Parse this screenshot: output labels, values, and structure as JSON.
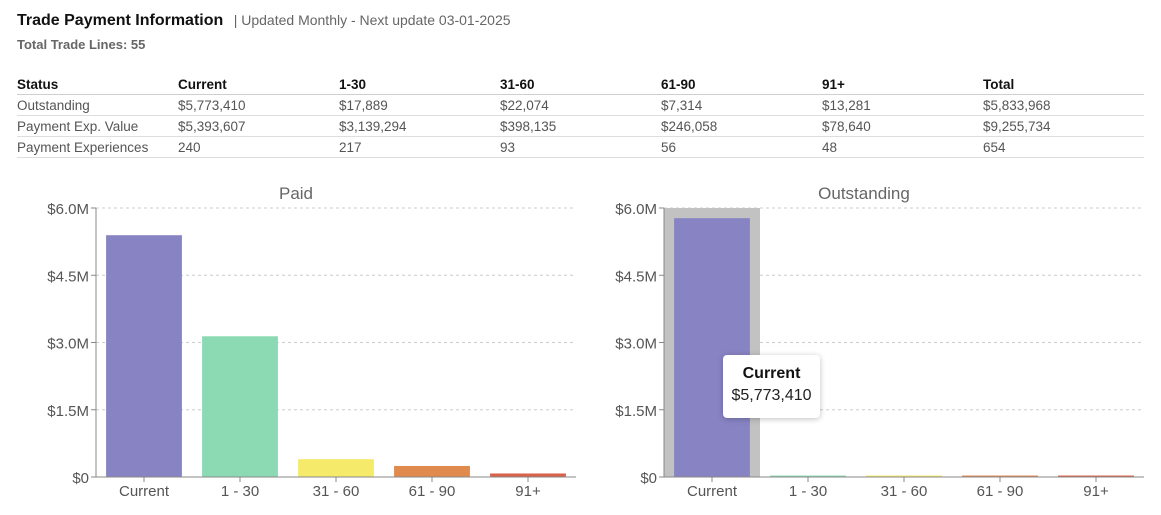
{
  "header": {
    "title": "Trade Payment Information",
    "updated": "| Updated Monthly - Next update 03-01-2025",
    "total_lines": "Total Trade Lines: 55"
  },
  "table": {
    "columns": [
      "Status",
      "Current",
      "1-30",
      "31-60",
      "61-90",
      "91+",
      "Total"
    ],
    "rows": [
      [
        "Outstanding",
        "$5,773,410",
        "$17,889",
        "$22,074",
        "$7,314",
        "$13,281",
        "$5,833,968"
      ],
      [
        "Payment Exp. Value",
        "$5,393,607",
        "$3,139,294",
        "$398,135",
        "$246,058",
        "$78,640",
        "$9,255,734"
      ],
      [
        "Payment Experiences",
        "240",
        "217",
        "93",
        "56",
        "48",
        "654"
      ]
    ]
  },
  "chart_data": [
    {
      "type": "bar",
      "title": "Paid",
      "categories": [
        "Current",
        "1 - 30",
        "31 - 60",
        "61 - 90",
        "91+"
      ],
      "values": [
        5393607,
        3139294,
        398135,
        246058,
        78640
      ],
      "colors": [
        "#8884c4",
        "#8cdab4",
        "#f6ea6b",
        "#e08a4e",
        "#d9624a"
      ],
      "ylim": [
        0,
        6000000
      ],
      "yticks": [
        "$0",
        "$1.5M",
        "$3.0M",
        "$4.5M",
        "$6.0M"
      ],
      "grid": true
    },
    {
      "type": "bar",
      "title": "Outstanding",
      "categories": [
        "Current",
        "1 - 30",
        "31 - 60",
        "61 - 90",
        "91+"
      ],
      "values": [
        5773410,
        17889,
        22074,
        7314,
        13281
      ],
      "colors": [
        "#8884c4",
        "#8cdab4",
        "#f6ea6b",
        "#e08a4e",
        "#d9624a"
      ],
      "ylim": [
        0,
        6000000
      ],
      "yticks": [
        "$0",
        "$1.5M",
        "$3.0M",
        "$4.5M",
        "$6.0M"
      ],
      "grid": true,
      "highlighted_category": "Current"
    }
  ],
  "tooltip": {
    "label": "Current",
    "value": "$5,773,410"
  }
}
